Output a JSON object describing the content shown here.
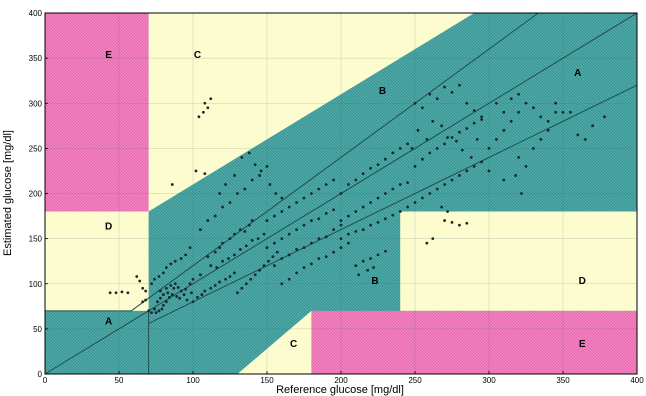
{
  "chart_data": {
    "type": "scatter",
    "title": "",
    "xlabel": "Reference glucose [mg/dl]",
    "ylabel": "Estimated glucose [mg/dl]",
    "xlim": [
      0,
      400
    ],
    "ylim": [
      0,
      400
    ],
    "xticks": [
      0,
      50,
      100,
      150,
      200,
      250,
      300,
      350,
      400
    ],
    "yticks": [
      0,
      50,
      100,
      150,
      200,
      250,
      300,
      350,
      400
    ],
    "grid": true,
    "colors": {
      "zone_A_B": "#3d9a98",
      "zone_C_D": "#fdfccf",
      "zone_E": "#ec6fb3",
      "points": "#1a2a2a",
      "lines": "#1f4e4e"
    },
    "zones": [
      {
        "label": "A",
        "x": 360,
        "y": 330
      },
      {
        "label": "A",
        "x": 43,
        "y": 55
      },
      {
        "label": "B",
        "x": 228,
        "y": 310
      },
      {
        "label": "B",
        "x": 223,
        "y": 100
      },
      {
        "label": "C",
        "x": 103,
        "y": 350
      },
      {
        "label": "C",
        "x": 168,
        "y": 30
      },
      {
        "label": "D",
        "x": 43,
        "y": 160
      },
      {
        "label": "D",
        "x": 363,
        "y": 100
      },
      {
        "label": "E",
        "x": 43,
        "y": 350
      },
      {
        "label": "E",
        "x": 363,
        "y": 30
      }
    ],
    "series": [
      {
        "values": [
          [
            44,
            90
          ],
          [
            48,
            90
          ],
          [
            52,
            91
          ],
          [
            56,
            90
          ],
          [
            62,
            108
          ],
          [
            64,
            103
          ],
          [
            66,
            95
          ],
          [
            68,
            92
          ],
          [
            66,
            80
          ],
          [
            68,
            82
          ],
          [
            70,
            70
          ],
          [
            72,
            68
          ],
          [
            74,
            72
          ],
          [
            75,
            68
          ],
          [
            77,
            70
          ],
          [
            79,
            72
          ],
          [
            80,
            76
          ],
          [
            82,
            80
          ],
          [
            84,
            85
          ],
          [
            86,
            88
          ],
          [
            78,
            92
          ],
          [
            82,
            95
          ],
          [
            85,
            98
          ],
          [
            88,
            100
          ],
          [
            90,
            96
          ],
          [
            92,
            92
          ],
          [
            95,
            94
          ],
          [
            98,
            100
          ],
          [
            100,
            105
          ],
          [
            105,
            110
          ],
          [
            76,
            80
          ],
          [
            78,
            84
          ],
          [
            80,
            88
          ],
          [
            83,
            90
          ],
          [
            87,
            95
          ],
          [
            89,
            86
          ],
          [
            91,
            84
          ],
          [
            94,
            88
          ],
          [
            96,
            82
          ],
          [
            99,
            90
          ],
          [
            72,
            100
          ],
          [
            74,
            105
          ],
          [
            77,
            108
          ],
          [
            80,
            112
          ],
          [
            82,
            118
          ],
          [
            85,
            122
          ],
          [
            88,
            125
          ],
          [
            92,
            128
          ],
          [
            95,
            132
          ],
          [
            98,
            140
          ],
          [
            104,
            285
          ],
          [
            108,
            300
          ],
          [
            110,
            295
          ],
          [
            112,
            305
          ],
          [
            107,
            290
          ],
          [
            102,
            225
          ],
          [
            108,
            222
          ],
          [
            86,
            210
          ],
          [
            110,
            130
          ],
          [
            115,
            135
          ],
          [
            118,
            140
          ],
          [
            120,
            145
          ],
          [
            125,
            150
          ],
          [
            128,
            155
          ],
          [
            132,
            160
          ],
          [
            135,
            158
          ],
          [
            138,
            165
          ],
          [
            140,
            170
          ],
          [
            112,
            120
          ],
          [
            116,
            118
          ],
          [
            120,
            125
          ],
          [
            124,
            128
          ],
          [
            128,
            132
          ],
          [
            132,
            138
          ],
          [
            136,
            142
          ],
          [
            140,
            148
          ],
          [
            144,
            150
          ],
          [
            148,
            155
          ],
          [
            105,
            160
          ],
          [
            110,
            170
          ],
          [
            115,
            175
          ],
          [
            120,
            185
          ],
          [
            125,
            190
          ],
          [
            130,
            200
          ],
          [
            135,
            205
          ],
          [
            140,
            215
          ],
          [
            145,
            220
          ],
          [
            150,
            230
          ],
          [
            118,
            200
          ],
          [
            122,
            210
          ],
          [
            128,
            220
          ],
          [
            133,
            240
          ],
          [
            138,
            245
          ],
          [
            142,
            232
          ],
          [
            146,
            225
          ],
          [
            152,
            210
          ],
          [
            156,
            200
          ],
          [
            160,
            195
          ],
          [
            150,
            140
          ],
          [
            155,
            145
          ],
          [
            160,
            150
          ],
          [
            165,
            155
          ],
          [
            170,
            160
          ],
          [
            175,
            165
          ],
          [
            180,
            170
          ],
          [
            185,
            172
          ],
          [
            190,
            178
          ],
          [
            195,
            182
          ],
          [
            150,
            170
          ],
          [
            155,
            175
          ],
          [
            160,
            180
          ],
          [
            165,
            185
          ],
          [
            170,
            190
          ],
          [
            175,
            195
          ],
          [
            180,
            200
          ],
          [
            185,
            205
          ],
          [
            190,
            210
          ],
          [
            195,
            215
          ],
          [
            155,
            120
          ],
          [
            160,
            128
          ],
          [
            165,
            132
          ],
          [
            170,
            138
          ],
          [
            175,
            140
          ],
          [
            180,
            145
          ],
          [
            185,
            150
          ],
          [
            190,
            152
          ],
          [
            195,
            160
          ],
          [
            200,
            165
          ],
          [
            160,
            100
          ],
          [
            165,
            105
          ],
          [
            170,
            112
          ],
          [
            175,
            118
          ],
          [
            180,
            122
          ],
          [
            185,
            128
          ],
          [
            190,
            130
          ],
          [
            195,
            135
          ],
          [
            200,
            140
          ],
          [
            205,
            145
          ],
          [
            200,
            170
          ],
          [
            205,
            175
          ],
          [
            210,
            180
          ],
          [
            215,
            185
          ],
          [
            220,
            190
          ],
          [
            225,
            195
          ],
          [
            230,
            200
          ],
          [
            235,
            205
          ],
          [
            240,
            210
          ],
          [
            245,
            212
          ],
          [
            200,
            200
          ],
          [
            205,
            210
          ],
          [
            210,
            215
          ],
          [
            215,
            222
          ],
          [
            220,
            228
          ],
          [
            225,
            232
          ],
          [
            230,
            238
          ],
          [
            235,
            245
          ],
          [
            240,
            250
          ],
          [
            245,
            255
          ],
          [
            200,
            150
          ],
          [
            205,
            155
          ],
          [
            210,
            158
          ],
          [
            215,
            160
          ],
          [
            220,
            165
          ],
          [
            225,
            168
          ],
          [
            230,
            172
          ],
          [
            235,
            176
          ],
          [
            240,
            180
          ],
          [
            245,
            185
          ],
          [
            250,
            190
          ],
          [
            255,
            195
          ],
          [
            260,
            200
          ],
          [
            265,
            205
          ],
          [
            270,
            210
          ],
          [
            275,
            215
          ],
          [
            280,
            220
          ],
          [
            285,
            225
          ],
          [
            290,
            230
          ],
          [
            295,
            235
          ],
          [
            250,
            230
          ],
          [
            255,
            238
          ],
          [
            260,
            245
          ],
          [
            265,
            250
          ],
          [
            270,
            255
          ],
          [
            275,
            262
          ],
          [
            280,
            268
          ],
          [
            285,
            272
          ],
          [
            290,
            278
          ],
          [
            295,
            282
          ],
          [
            250,
            300
          ],
          [
            255,
            295
          ],
          [
            260,
            310
          ],
          [
            265,
            305
          ],
          [
            270,
            318
          ],
          [
            275,
            312
          ],
          [
            280,
            320
          ],
          [
            285,
            300
          ],
          [
            290,
            292
          ],
          [
            295,
            285
          ],
          [
            248,
            250
          ],
          [
            252,
            270
          ],
          [
            258,
            260
          ],
          [
            262,
            280
          ],
          [
            268,
            275
          ],
          [
            272,
            262
          ],
          [
            278,
            258
          ],
          [
            282,
            248
          ],
          [
            288,
            240
          ],
          [
            292,
            260
          ],
          [
            300,
            250
          ],
          [
            305,
            260
          ],
          [
            310,
            270
          ],
          [
            315,
            280
          ],
          [
            320,
            290
          ],
          [
            325,
            300
          ],
          [
            330,
            295
          ],
          [
            335,
            285
          ],
          [
            340,
            280
          ],
          [
            345,
            290
          ],
          [
            320,
            240
          ],
          [
            325,
            230
          ],
          [
            330,
            250
          ],
          [
            335,
            260
          ],
          [
            340,
            270
          ],
          [
            345,
            300
          ],
          [
            350,
            290
          ],
          [
            355,
            290
          ],
          [
            360,
            265
          ],
          [
            365,
            260
          ],
          [
            305,
            300
          ],
          [
            310,
            290
          ],
          [
            315,
            305
          ],
          [
            320,
            310
          ],
          [
            300,
            225
          ],
          [
            310,
            215
          ],
          [
            318,
            220
          ],
          [
            322,
            200
          ],
          [
            370,
            275
          ],
          [
            378,
            285
          ],
          [
            270,
            170
          ],
          [
            275,
            168
          ],
          [
            280,
            165
          ],
          [
            285,
            167
          ],
          [
            262,
            150
          ],
          [
            258,
            145
          ],
          [
            272,
            180
          ],
          [
            268,
            185
          ],
          [
            210,
            120
          ],
          [
            215,
            125
          ],
          [
            220,
            128
          ],
          [
            225,
            132
          ],
          [
            230,
            136
          ],
          [
            212,
            110
          ],
          [
            218,
            115
          ],
          [
            222,
            118
          ],
          [
            100,
            80
          ],
          [
            103,
            85
          ],
          [
            106,
            88
          ],
          [
            108,
            92
          ],
          [
            112,
            95
          ],
          [
            115,
            98
          ],
          [
            118,
            102
          ],
          [
            122,
            105
          ],
          [
            125,
            108
          ],
          [
            128,
            112
          ],
          [
            130,
            90
          ],
          [
            133,
            95
          ],
          [
            136,
            100
          ],
          [
            139,
            105
          ],
          [
            142,
            110
          ],
          [
            145,
            115
          ],
          [
            148,
            120
          ],
          [
            151,
            125
          ],
          [
            154,
            130
          ],
          [
            157,
            135
          ]
        ]
      }
    ]
  }
}
